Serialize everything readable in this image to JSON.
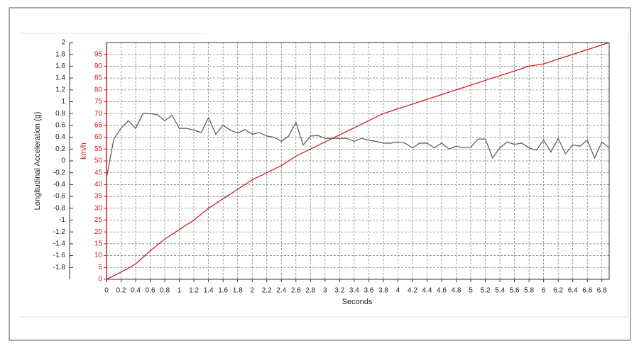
{
  "chart_data": {
    "type": "line",
    "x_label": "Seconds",
    "y_label": "Longitudinal Acceleration (g)",
    "y2_label": "km/h",
    "xlim": [
      0,
      6.9
    ],
    "xticks": [
      0,
      0.2,
      0.4,
      0.6,
      0.8,
      1,
      1.2,
      1.4,
      1.6,
      1.8,
      2,
      2.2,
      2.4,
      2.6,
      2.8,
      3,
      3.2,
      3.4,
      3.6,
      3.8,
      4,
      4.2,
      4.4,
      4.6,
      4.8,
      5,
      5.2,
      5.4,
      5.6,
      5.8,
      6,
      6.2,
      6.4,
      6.6,
      6.8
    ],
    "ylim": [
      -2,
      2
    ],
    "yticks": [
      2,
      1.8,
      1.6,
      1.4,
      1.2,
      1,
      0.8,
      0.6,
      0.4,
      0.2,
      0,
      -0.2,
      -0.4,
      -0.6,
      -0.8,
      -1,
      -1.2,
      -1.4,
      -1.6,
      -1.8
    ],
    "y2lim": [
      0,
      100
    ],
    "y2ticks": [
      95,
      90,
      85,
      80,
      75,
      70,
      65,
      60,
      55,
      50,
      45,
      40,
      35,
      30,
      25,
      20,
      15,
      10,
      5,
      0
    ],
    "grid": true,
    "series": [
      {
        "color": "#606060",
        "axis": "y",
        "x": [
          0,
          0.1,
          0.2,
          0.3,
          0.4,
          0.5,
          0.6,
          0.7,
          0.8,
          0.9,
          1,
          1.1,
          1.2,
          1.3,
          1.4,
          1.5,
          1.6,
          1.7,
          1.8,
          1.9,
          2,
          2.1,
          2.2,
          2.3,
          2.4,
          2.5,
          2.6,
          2.7,
          2.8,
          2.9,
          3,
          3.1,
          3.2,
          3.3,
          3.4,
          3.5,
          3.6,
          3.7,
          3.8,
          3.9,
          4,
          4.1,
          4.2,
          4.3,
          4.4,
          4.5,
          4.6,
          4.7,
          4.8,
          4.9,
          5,
          5.1,
          5.2,
          5.3,
          5.4,
          5.5,
          5.6,
          5.7,
          5.8,
          5.9,
          6,
          6.1,
          6.2,
          6.3,
          6.4,
          6.5,
          6.6,
          6.7,
          6.8,
          6.9
        ],
        "values": [
          -0.29,
          0.37,
          0.55,
          0.68,
          0.55,
          0.8,
          0.8,
          0.78,
          0.68,
          0.77,
          0.55,
          0.55,
          0.52,
          0.48,
          0.73,
          0.45,
          0.6,
          0.52,
          0.47,
          0.53,
          0.45,
          0.48,
          0.42,
          0.4,
          0.33,
          0.42,
          0.65,
          0.27,
          0.42,
          0.43,
          0.38,
          0.38,
          0.38,
          0.38,
          0.33,
          0.38,
          0.35,
          0.33,
          0.3,
          0.3,
          0.32,
          0.3,
          0.22,
          0.3,
          0.3,
          0.22,
          0.3,
          0.2,
          0.25,
          0.22,
          0.23,
          0.37,
          0.37,
          0.05,
          0.22,
          0.32,
          0.28,
          0.3,
          0.22,
          0.18,
          0.35,
          0.15,
          0.38,
          0.12,
          0.27,
          0.25,
          0.35,
          0.05,
          0.32,
          0.22
        ]
      },
      {
        "color": "#d02020",
        "axis": "y2",
        "x": [
          0,
          0.2,
          0.4,
          0.6,
          0.8,
          1,
          1.2,
          1.4,
          1.6,
          1.8,
          2,
          2.2,
          2.4,
          2.6,
          2.8,
          3,
          3.2,
          3.4,
          3.6,
          3.8,
          4,
          4.2,
          4.4,
          4.6,
          4.8,
          5,
          5.2,
          5.4,
          5.6,
          5.8,
          6,
          6.2,
          6.4,
          6.6,
          6.8,
          6.9
        ],
        "values": [
          0,
          3,
          6.5,
          12,
          17,
          21,
          25,
          30,
          34,
          38,
          42,
          45,
          48,
          52,
          55,
          58,
          61,
          64,
          67,
          70,
          72,
          74,
          76,
          78,
          80,
          82,
          84,
          86,
          88,
          90,
          91,
          93,
          95,
          97,
          99,
          100
        ]
      }
    ]
  }
}
